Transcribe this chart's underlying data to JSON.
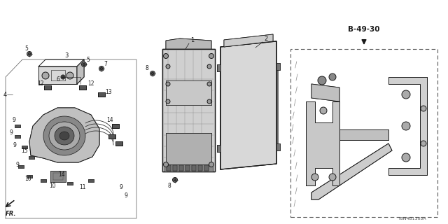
{
  "bg_color": "#ffffff",
  "line_color": "#1a1a1a",
  "diagram_code": "T8N4B1305A",
  "reference": "B-49-30",
  "fig_width": 6.4,
  "fig_height": 3.2,
  "dpi": 100,
  "labels": {
    "fr": "FR.",
    "part1": "1",
    "part2": "2",
    "part3": "3",
    "part4": "4",
    "part5a": "5",
    "part5b": "5",
    "part6": "6",
    "part7": "7",
    "part8a": "8",
    "part8b": "8",
    "part9": "9",
    "part10": "10",
    "part11": "11",
    "part12": "12",
    "part13": "13",
    "part14": "14",
    "part15": "15"
  }
}
